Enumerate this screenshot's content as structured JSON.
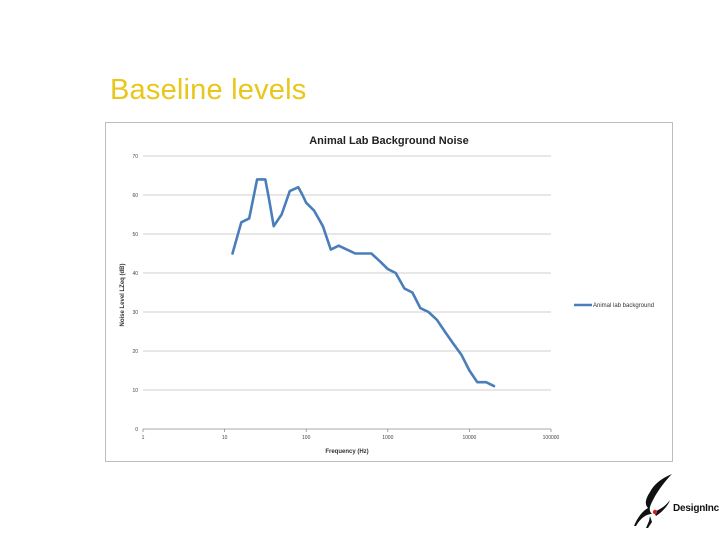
{
  "slide": {
    "title": "Baseline levels"
  },
  "logo": {
    "text": "DesignInc"
  },
  "colors": {
    "title": "#e8c71a",
    "series": "#4a7ebb",
    "grid": "#bfbfbf"
  },
  "chart_data": {
    "type": "line",
    "title": "Animal Lab Background Noise",
    "xlabel": "Frequency (Hz)",
    "ylabel": "Noise Level LZeq (dB)",
    "x_scale": "log",
    "xlim": [
      1,
      100000
    ],
    "ylim": [
      0,
      70
    ],
    "x_ticks": [
      "1",
      "10",
      "100",
      "1000",
      "10000",
      "100000"
    ],
    "y_ticks": [
      "0",
      "10",
      "20",
      "30",
      "40",
      "50",
      "60",
      "70"
    ],
    "grid": "horizontal",
    "legend_position": "right",
    "series": [
      {
        "name": "Animal lab background",
        "color": "#4a7ebb",
        "x": [
          12.5,
          13.3,
          16,
          20,
          25,
          31.5,
          35,
          40,
          50,
          63,
          80,
          90,
          100,
          125,
          160,
          200,
          250,
          315,
          400,
          500,
          630,
          800,
          1000,
          1250,
          1600,
          2000,
          2500,
          3150,
          4000,
          5000,
          6300,
          8000,
          10000,
          12500,
          16000,
          20000
        ],
        "y": [
          45,
          47,
          53,
          54,
          64,
          64,
          59,
          52,
          55,
          61,
          62,
          60,
          58,
          56,
          52,
          46,
          47,
          46,
          45,
          45,
          45,
          43,
          41,
          40,
          36,
          35,
          31,
          30,
          28,
          25,
          22,
          19,
          15,
          12,
          12,
          11
        ]
      }
    ]
  }
}
